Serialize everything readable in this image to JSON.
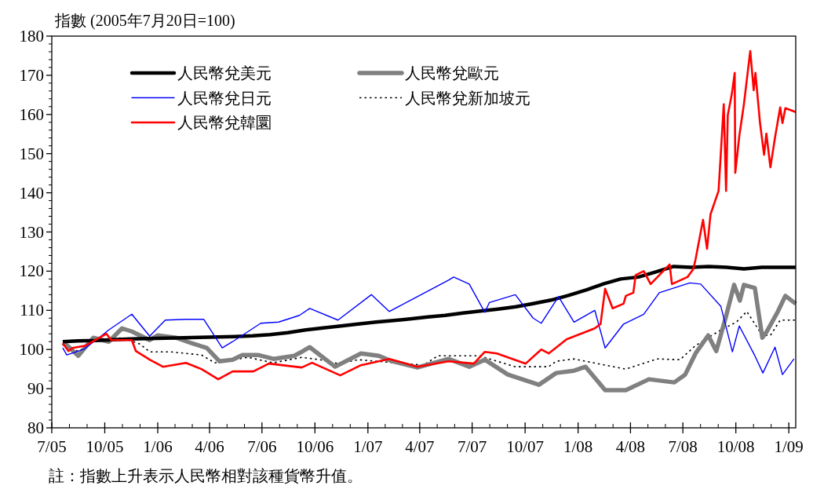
{
  "chart_data": {
    "type": "line",
    "ylabel": "指數 (2005年7月20日=100)",
    "annotations": [
      "註：指數上升表示人民幣相對該種貨幣升值。"
    ],
    "xlim": [
      "2005-07-01",
      "2009-01-13"
    ],
    "ylim": [
      80,
      180
    ],
    "yticks": [
      80,
      90,
      100,
      110,
      120,
      130,
      140,
      150,
      160,
      170,
      180
    ],
    "xticks": [
      {
        "value": "2005-07-01",
        "label": "7/05"
      },
      {
        "value": "2005-10-01",
        "label": "10/05"
      },
      {
        "value": "2006-01-01",
        "label": "1/06"
      },
      {
        "value": "2006-04-01",
        "label": "4/06"
      },
      {
        "value": "2006-07-01",
        "label": "7/06"
      },
      {
        "value": "2006-10-01",
        "label": "10/06"
      },
      {
        "value": "2007-01-01",
        "label": "1/07"
      },
      {
        "value": "2007-04-01",
        "label": "4/07"
      },
      {
        "value": "2007-07-01",
        "label": "7/07"
      },
      {
        "value": "2007-10-01",
        "label": "10/07"
      },
      {
        "value": "2008-01-01",
        "label": "1/08"
      },
      {
        "value": "2008-04-01",
        "label": "4/08"
      },
      {
        "value": "2008-07-01",
        "label": "7/08"
      },
      {
        "value": "2008-10-01",
        "label": "10/08"
      },
      {
        "value": "2009-01-01",
        "label": "1/09"
      }
    ],
    "legend": "top left",
    "grid": false,
    "marker": "none",
    "x": [
      "2005-07-20",
      "2005-08-15",
      "2005-09-15",
      "2005-10-15",
      "2005-11-15",
      "2005-12-15",
      "2006-01-15",
      "2006-02-15",
      "2006-03-15",
      "2006-04-15",
      "2006-05-15",
      "2006-06-15",
      "2006-07-15",
      "2006-08-15",
      "2006-09-15",
      "2006-10-15",
      "2006-11-15",
      "2006-12-15",
      "2007-01-15",
      "2007-02-15",
      "2007-03-15",
      "2007-04-15",
      "2007-05-15",
      "2007-06-15",
      "2007-07-15",
      "2007-08-15",
      "2007-09-15",
      "2007-10-15",
      "2007-11-15",
      "2007-12-15",
      "2008-01-15",
      "2008-02-15",
      "2008-03-15",
      "2008-04-15",
      "2008-05-15",
      "2008-06-15",
      "2008-07-15",
      "2008-08-15",
      "2008-09-15",
      "2008-10-15",
      "2008-11-15",
      "2008-12-15",
      "2009-01-13"
    ],
    "series": [
      {
        "name": "人民幣兌美元",
        "color": "#000000",
        "line_style": "solid",
        "values": [
          102.0,
          102.2,
          102.3,
          102.5,
          102.7,
          102.8,
          102.9,
          103.0,
          103.1,
          103.2,
          103.3,
          103.5,
          103.8,
          104.3,
          105.0,
          105.5,
          106.0,
          106.5,
          107.0,
          107.4,
          107.8,
          108.3,
          108.7,
          109.3,
          109.8,
          110.3,
          110.9,
          111.7,
          112.6,
          113.8,
          115.2,
          116.8,
          118.0,
          118.5,
          119.8,
          121.2,
          121.0,
          121.2,
          121.0,
          120.6,
          121.0,
          121.0,
          121.0
        ]
      },
      {
        "name": "人民幣兌歐元",
        "color": "#808080",
        "line_style": "solid",
        "x": [
          "2005-07-20",
          "2005-07-28",
          "2005-08-16",
          "2005-09-11",
          "2005-10-08",
          "2005-10-31",
          "2005-11-17",
          "2005-12-18",
          "2006-01-01",
          "2006-02-02",
          "2006-03-01",
          "2006-03-27",
          "2006-04-18",
          "2006-05-11",
          "2006-05-28",
          "2006-06-24",
          "2006-07-21",
          "2006-08-26",
          "2006-09-08",
          "2006-09-22",
          "2006-11-05",
          "2006-12-20",
          "2007-01-20",
          "2007-02-12",
          "2007-03-28",
          "2007-05-21",
          "2007-06-26",
          "2007-07-23",
          "2007-09-01",
          "2007-10-25",
          "2007-11-24",
          "2007-12-25",
          "2008-01-14",
          "2008-02-17",
          "2008-03-24",
          "2008-05-03",
          "2008-06-16",
          "2008-07-05",
          "2008-07-23",
          "2008-08-14",
          "2008-08-28",
          "2008-09-14",
          "2008-09-28",
          "2008-10-08",
          "2008-10-15",
          "2008-11-03",
          "2008-11-16",
          "2008-11-23",
          "2008-12-13",
          "2008-12-26",
          "2009-01-13"
        ],
        "values": [
          101.6,
          101,
          98.4,
          103,
          102,
          105.4,
          104.6,
          102.4,
          103.6,
          103,
          101.6,
          100.4,
          97,
          97.4,
          98.6,
          98.6,
          97.6,
          98.4,
          99.4,
          100.6,
          95.6,
          99,
          98.4,
          97,
          95.4,
          97.6,
          95.6,
          97.4,
          93.6,
          91,
          94,
          94.6,
          95.6,
          89.6,
          89.6,
          92.4,
          91.6,
          93.6,
          99,
          103.6,
          99.6,
          108.5,
          116.5,
          112.5,
          116.5,
          115.7,
          103,
          104.4,
          109.7,
          113.7,
          111.7
        ]
      },
      {
        "name": "人民幣兌日元",
        "color": "#0000ff",
        "line_style": "solid",
        "x": [
          "2005-07-20",
          "2005-07-27",
          "2005-08-25",
          "2005-09-21",
          "2005-10-08",
          "2005-11-17",
          "2005-12-18",
          "2006-01-14",
          "2006-02-19",
          "2006-03-22",
          "2006-04-23",
          "2006-05-11",
          "2006-06-29",
          "2006-07-30",
          "2006-09-04",
          "2006-09-22",
          "2006-11-10",
          "2007-01-07",
          "2007-02-07",
          "2007-03-15",
          "2007-05-21",
          "2007-05-30",
          "2007-06-26",
          "2007-07-23",
          "2007-07-31",
          "2007-09-14",
          "2007-10-15",
          "2007-10-29",
          "2007-11-28",
          "2007-12-25",
          "2008-01-30",
          "2008-02-17",
          "2008-03-20",
          "2008-04-24",
          "2008-05-21",
          "2008-07-13",
          "2008-08-01",
          "2008-09-05",
          "2008-09-25",
          "2008-10-07",
          "2008-11-03",
          "2008-11-17",
          "2008-12-08",
          "2008-12-21",
          "2009-01-10"
        ],
        "values": [
          100.4,
          98.6,
          100,
          103,
          105,
          109,
          103.4,
          107.5,
          107.7,
          107.7,
          100.4,
          102,
          106.7,
          107,
          108.7,
          110.5,
          107.5,
          114,
          109.7,
          112.5,
          117.7,
          118.5,
          116.7,
          109.5,
          112,
          114,
          108,
          106.7,
          113.5,
          107,
          110,
          100.4,
          106.5,
          109,
          114.5,
          117,
          116.7,
          111,
          99.4,
          106,
          98.4,
          94,
          100.6,
          93.6,
          97.6
        ]
      },
      {
        "name": "人民幣兌新加坡元",
        "color": "#000000",
        "line_style": "dotted",
        "x": [
          "2005-07-20",
          "2005-08-16",
          "2005-09-11",
          "2005-10-31",
          "2005-12-01",
          "2005-12-18",
          "2006-01-23",
          "2006-03-18",
          "2006-04-10",
          "2006-06-06",
          "2006-07-21",
          "2006-09-08",
          "2006-10-09",
          "2006-11-10",
          "2006-12-15",
          "2007-04-07",
          "2007-05-03",
          "2007-07-13",
          "2007-09-14",
          "2007-11-11",
          "2007-11-24",
          "2007-12-25",
          "2008-02-17",
          "2008-03-24",
          "2008-05-17",
          "2008-06-26",
          "2008-07-23",
          "2008-08-14",
          "2008-09-05",
          "2008-10-02",
          "2008-10-20",
          "2008-11-16",
          "2008-11-30",
          "2008-12-17",
          "2009-01-13"
        ],
        "values": [
          101.6,
          99.5,
          102,
          103,
          101.4,
          99.4,
          99.4,
          98.6,
          96.6,
          98,
          96.6,
          98,
          97.4,
          96.4,
          97.4,
          96,
          98.4,
          98.4,
          95.6,
          95.6,
          97,
          97.6,
          96,
          95,
          97.6,
          97.4,
          101,
          103,
          105,
          107,
          109.7,
          103.6,
          103.6,
          107.5,
          107.5
        ]
      },
      {
        "name": "人民幣兌韓圜",
        "color": "#ff0000",
        "line_style": "solid",
        "x": [
          "2005-07-20",
          "2005-07-30",
          "2005-08-06",
          "2005-08-29",
          "2005-10-04",
          "2005-10-12",
          "2005-11-17",
          "2005-11-24",
          "2005-12-18",
          "2006-01-10",
          "2006-02-19",
          "2006-03-18",
          "2006-04-16",
          "2006-05-11",
          "2006-06-16",
          "2006-07-13",
          "2006-09-08",
          "2006-09-26",
          "2006-11-14",
          "2006-12-20",
          "2007-02-07",
          "2007-03-28",
          "2007-05-21",
          "2007-07-04",
          "2007-07-23",
          "2007-08-13",
          "2007-10-02",
          "2007-10-29",
          "2007-11-11",
          "2007-12-12",
          "2008-01-30",
          "2008-02-09",
          "2008-02-17",
          "2008-03-01",
          "2008-03-20",
          "2008-03-24",
          "2008-04-06",
          "2008-04-10",
          "2008-04-24",
          "2008-05-06",
          "2008-06-08",
          "2008-06-12",
          "2008-07-09",
          "2008-07-19",
          "2008-07-23",
          "2008-08-05",
          "2008-08-12",
          "2008-08-18",
          "2008-09-01",
          "2008-09-10",
          "2008-09-14",
          "2008-09-17",
          "2008-09-24",
          "2008-09-29",
          "2008-09-30",
          "2008-10-07",
          "2008-10-15",
          "2008-10-26",
          "2008-11-01",
          "2008-11-04",
          "2008-11-12",
          "2008-11-19",
          "2008-11-23",
          "2008-11-30",
          "2008-12-08",
          "2008-12-17",
          "2008-12-21",
          "2008-12-26",
          "2009-01-13"
        ],
        "values": [
          101.6,
          99.6,
          100.4,
          101,
          104,
          102.4,
          102.4,
          99.6,
          97.4,
          95.6,
          96.6,
          95,
          92.4,
          94.4,
          94.4,
          96.4,
          95.4,
          96.6,
          93.4,
          96,
          97.6,
          95.6,
          97,
          96.4,
          99.4,
          99,
          96.4,
          100,
          99,
          102.6,
          105.4,
          106.5,
          115.5,
          110.5,
          111.7,
          113.7,
          114.5,
          119,
          120,
          116.7,
          121.7,
          116.7,
          118.5,
          120.5,
          123,
          133.1,
          125.7,
          134.5,
          140.5,
          162.6,
          140.5,
          159.8,
          165.2,
          170.6,
          145.1,
          154.5,
          162.6,
          176.2,
          166.2,
          170.6,
          157.8,
          149.7,
          155.1,
          146.5,
          154.1,
          161.8,
          157.8,
          161.6,
          160.6
        ]
      }
    ]
  }
}
